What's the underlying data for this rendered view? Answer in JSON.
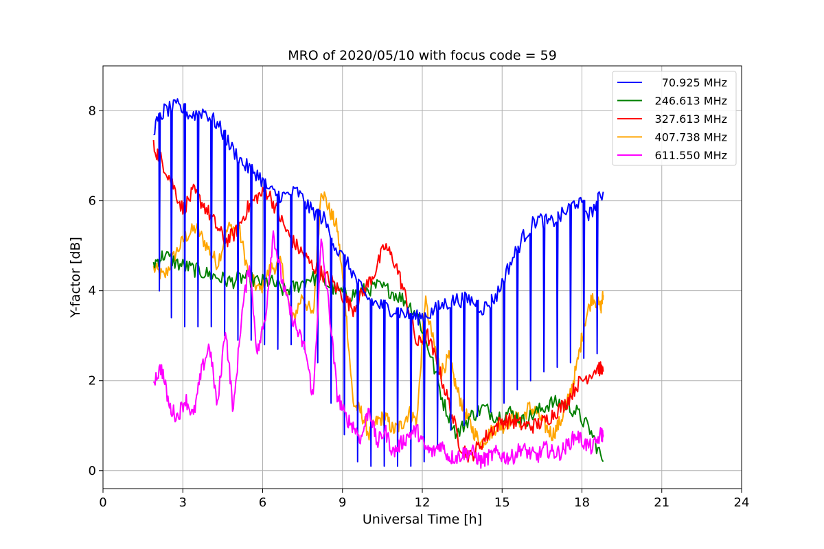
{
  "chart_data": {
    "type": "line",
    "title": "MRO of 2020/05/10 with focus code = 59",
    "xlabel": "Universal Time [h]",
    "ylabel": "Y-factor [dB]",
    "xlim": [
      0,
      24
    ],
    "ylim": [
      -0.4,
      9.0
    ],
    "xticks": [
      0,
      3,
      6,
      9,
      12,
      15,
      18,
      21,
      24
    ],
    "yticks": [
      0,
      2,
      4,
      6,
      8
    ],
    "grid": true,
    "legend_position": "top-right",
    "series": [
      {
        "name": "70.925 MHz",
        "color": "#0000ff",
        "x": [
          1.9,
          2.3,
          2.8,
          3.3,
          3.8,
          4.3,
          4.8,
          5.3,
          5.8,
          6.3,
          6.8,
          7.3,
          7.8,
          8.3,
          8.8,
          9.3,
          9.8,
          10.3,
          10.8,
          11.3,
          11.8,
          12.3,
          12.8,
          13.3,
          13.8,
          14.3,
          14.8,
          15.3,
          15.8,
          16.3,
          16.8,
          17.3,
          17.8,
          18.3,
          18.8
        ],
        "y": [
          7.6,
          8.0,
          8.1,
          7.9,
          8.0,
          7.7,
          7.2,
          6.8,
          6.6,
          6.2,
          6.1,
          6.2,
          5.8,
          5.6,
          4.9,
          4.5,
          3.9,
          3.7,
          3.6,
          3.5,
          3.4,
          3.5,
          3.7,
          3.8,
          3.8,
          3.6,
          3.9,
          4.6,
          5.2,
          5.6,
          5.5,
          5.7,
          6.0,
          5.7,
          6.2
        ],
        "dip_min": [
          4.0,
          3.4,
          3.2,
          3.2,
          3.2,
          3.0,
          2.9,
          2.9,
          2.8,
          2.7,
          2.8,
          2.7,
          2.4,
          1.5,
          0.8,
          0.2,
          0.1,
          0.1,
          0.1,
          0.1,
          0.2,
          0.5,
          0.9,
          1.0,
          1.2,
          1.3,
          1.5,
          1.8,
          2.0,
          2.2,
          2.3,
          2.4,
          2.5,
          2.6,
          2.7
        ]
      },
      {
        "name": "246.613 MHz",
        "color": "#008000",
        "x": [
          1.9,
          2.3,
          2.8,
          3.3,
          3.8,
          4.3,
          4.8,
          5.3,
          5.8,
          6.3,
          6.8,
          7.3,
          7.8,
          8.3,
          8.8,
          9.3,
          9.8,
          10.3,
          10.8,
          11.3,
          11.8,
          12.3,
          12.8,
          13.3,
          13.8,
          14.3,
          14.8,
          15.3,
          15.8,
          16.3,
          16.8,
          17.3,
          17.8,
          18.3,
          18.8
        ],
        "y": [
          4.6,
          4.8,
          4.6,
          4.5,
          4.4,
          4.3,
          4.2,
          4.3,
          4.2,
          4.2,
          4.0,
          4.1,
          4.3,
          4.2,
          4.0,
          3.9,
          4.0,
          4.1,
          4.0,
          3.8,
          3.5,
          2.6,
          1.5,
          0.8,
          1.2,
          1.4,
          1.2,
          1.3,
          1.1,
          1.3,
          1.5,
          1.5,
          1.3,
          0.9,
          0.2
        ]
      },
      {
        "name": "327.613 MHz",
        "color": "#ff0000",
        "x": [
          1.9,
          2.2,
          2.6,
          3.0,
          3.4,
          3.8,
          4.2,
          4.6,
          5.0,
          5.4,
          5.8,
          6.2,
          6.6,
          7.0,
          7.4,
          7.8,
          8.2,
          8.6,
          9.0,
          9.4,
          9.8,
          10.2,
          10.6,
          11.0,
          11.4,
          11.8,
          12.2,
          12.6,
          13.0,
          13.4,
          13.8,
          14.2,
          14.6,
          15.0,
          15.4,
          15.8,
          16.2,
          16.6,
          17.0,
          17.4,
          17.8,
          18.2,
          18.6,
          18.8
        ],
        "y": [
          7.2,
          6.9,
          6.4,
          5.8,
          6.2,
          5.9,
          5.5,
          5.1,
          5.3,
          5.8,
          6.1,
          6.2,
          5.7,
          5.2,
          4.9,
          4.6,
          4.4,
          4.2,
          3.9,
          3.6,
          4.0,
          4.4,
          5.0,
          4.6,
          3.8,
          2.8,
          3.0,
          2.3,
          1.5,
          0.6,
          0.3,
          0.6,
          0.9,
          1.1,
          1.1,
          1.0,
          1.0,
          1.1,
          1.3,
          1.5,
          1.9,
          2.1,
          2.3,
          2.2
        ]
      },
      {
        "name": "407.738 MHz",
        "color": "#ffa500",
        "x": [
          1.9,
          2.3,
          2.7,
          3.1,
          3.5,
          3.9,
          4.3,
          4.7,
          5.1,
          5.5,
          5.9,
          6.3,
          6.7,
          7.1,
          7.5,
          7.9,
          8.2,
          8.5,
          8.8,
          9.1,
          9.4,
          9.7,
          10.0,
          10.3,
          10.6,
          10.9,
          11.2,
          11.5,
          11.8,
          12.1,
          12.4,
          12.7,
          13.0,
          13.3,
          13.6,
          13.9,
          14.2,
          14.5,
          14.8,
          15.1,
          15.4,
          15.7,
          16.0,
          16.3,
          16.6,
          16.9,
          17.2,
          17.5,
          17.8,
          18.1,
          18.4,
          18.7,
          18.8
        ],
        "y": [
          4.5,
          4.3,
          4.8,
          5.2,
          5.4,
          5.0,
          4.6,
          5.4,
          5.4,
          4.3,
          4.0,
          4.5,
          4.6,
          3.3,
          3.9,
          3.4,
          6.3,
          5.8,
          5.4,
          3.8,
          1.5,
          1.3,
          0.8,
          1.1,
          1.2,
          0.9,
          1.0,
          1.3,
          1.1,
          3.8,
          2.9,
          2.2,
          2.5,
          1.8,
          1.3,
          0.9,
          0.6,
          0.8,
          1.0,
          1.0,
          1.2,
          1.1,
          1.4,
          1.3,
          1.0,
          0.8,
          1.1,
          1.6,
          2.3,
          3.3,
          3.9,
          3.6,
          3.9
        ]
      },
      {
        "name": "611.550 MHz",
        "color": "#ff00ff",
        "x": [
          1.9,
          2.2,
          2.5,
          2.8,
          3.1,
          3.4,
          3.7,
          4.0,
          4.3,
          4.6,
          4.9,
          5.2,
          5.5,
          5.8,
          6.1,
          6.4,
          6.7,
          7.0,
          7.3,
          7.6,
          7.9,
          8.2,
          8.5,
          8.8,
          9.1,
          9.4,
          9.7,
          10.0,
          10.3,
          10.6,
          10.9,
          11.2,
          11.5,
          11.8,
          12.1,
          12.4,
          12.7,
          13.0,
          13.3,
          13.6,
          13.9,
          14.2,
          14.5,
          14.8,
          15.1,
          15.4,
          15.7,
          16.0,
          16.3,
          16.6,
          16.9,
          17.2,
          17.5,
          17.8,
          18.1,
          18.4,
          18.7,
          18.8
        ],
        "y": [
          2.0,
          2.3,
          1.4,
          1.2,
          1.6,
          1.2,
          2.2,
          2.8,
          1.4,
          3.2,
          1.3,
          3.4,
          4.6,
          2.6,
          3.4,
          5.3,
          4.3,
          3.6,
          3.1,
          2.7,
          1.6,
          5.1,
          3.6,
          1.7,
          1.2,
          1.0,
          0.7,
          1.4,
          0.6,
          0.9,
          0.4,
          0.6,
          0.8,
          0.9,
          0.5,
          0.4,
          0.6,
          0.3,
          0.3,
          0.4,
          0.4,
          0.2,
          0.3,
          0.4,
          0.3,
          0.3,
          0.5,
          0.4,
          0.3,
          0.5,
          0.4,
          0.4,
          0.6,
          0.8,
          0.6,
          0.5,
          0.8,
          0.8
        ]
      }
    ]
  }
}
